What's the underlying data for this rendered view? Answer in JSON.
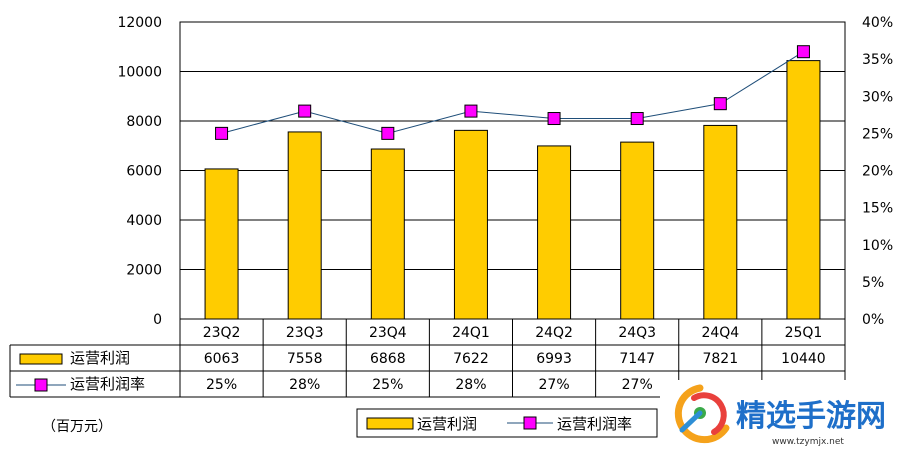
{
  "chart_data": {
    "type": "bar",
    "categories": [
      "23Q2",
      "23Q3",
      "23Q4",
      "24Q1",
      "24Q2",
      "24Q3",
      "24Q4",
      "25Q1"
    ],
    "series": [
      {
        "name": "运营利润",
        "type": "bar",
        "axis": "left",
        "values": [
          6063,
          7558,
          6868,
          7622,
          6993,
          7147,
          7821,
          10440
        ],
        "color": "#FFCC00"
      },
      {
        "name": "运营利润率",
        "type": "line",
        "axis": "right",
        "values": [
          25,
          28,
          25,
          28,
          27,
          27,
          29,
          36
        ],
        "color": "#FF00FF",
        "line_color": "#1F4E79"
      }
    ],
    "ylim": [
      0,
      12000
    ],
    "y_ticks": [
      "0",
      "2000",
      "4000",
      "6000",
      "8000",
      "10000",
      "12000"
    ],
    "y2lim": [
      0,
      40
    ],
    "y2_ticks": [
      "0%",
      "5%",
      "10%",
      "15%",
      "20%",
      "25%",
      "30%",
      "35%",
      "40%"
    ],
    "grid": true,
    "legend": "bottom-right",
    "unit_label": "（百万元）",
    "table": {
      "rows": [
        {
          "label": "运营利润",
          "cells": [
            "6063",
            "7558",
            "6868",
            "7622",
            "6993",
            "7147",
            "7821",
            "10440"
          ]
        },
        {
          "label": "运营利润率",
          "cells": [
            "25%",
            "28%",
            "25%",
            "28%",
            "27%",
            "27%",
            "",
            ""
          ]
        }
      ]
    }
  },
  "watermark": {
    "text": "精选手游网",
    "url": "www.tzymjx.net"
  }
}
